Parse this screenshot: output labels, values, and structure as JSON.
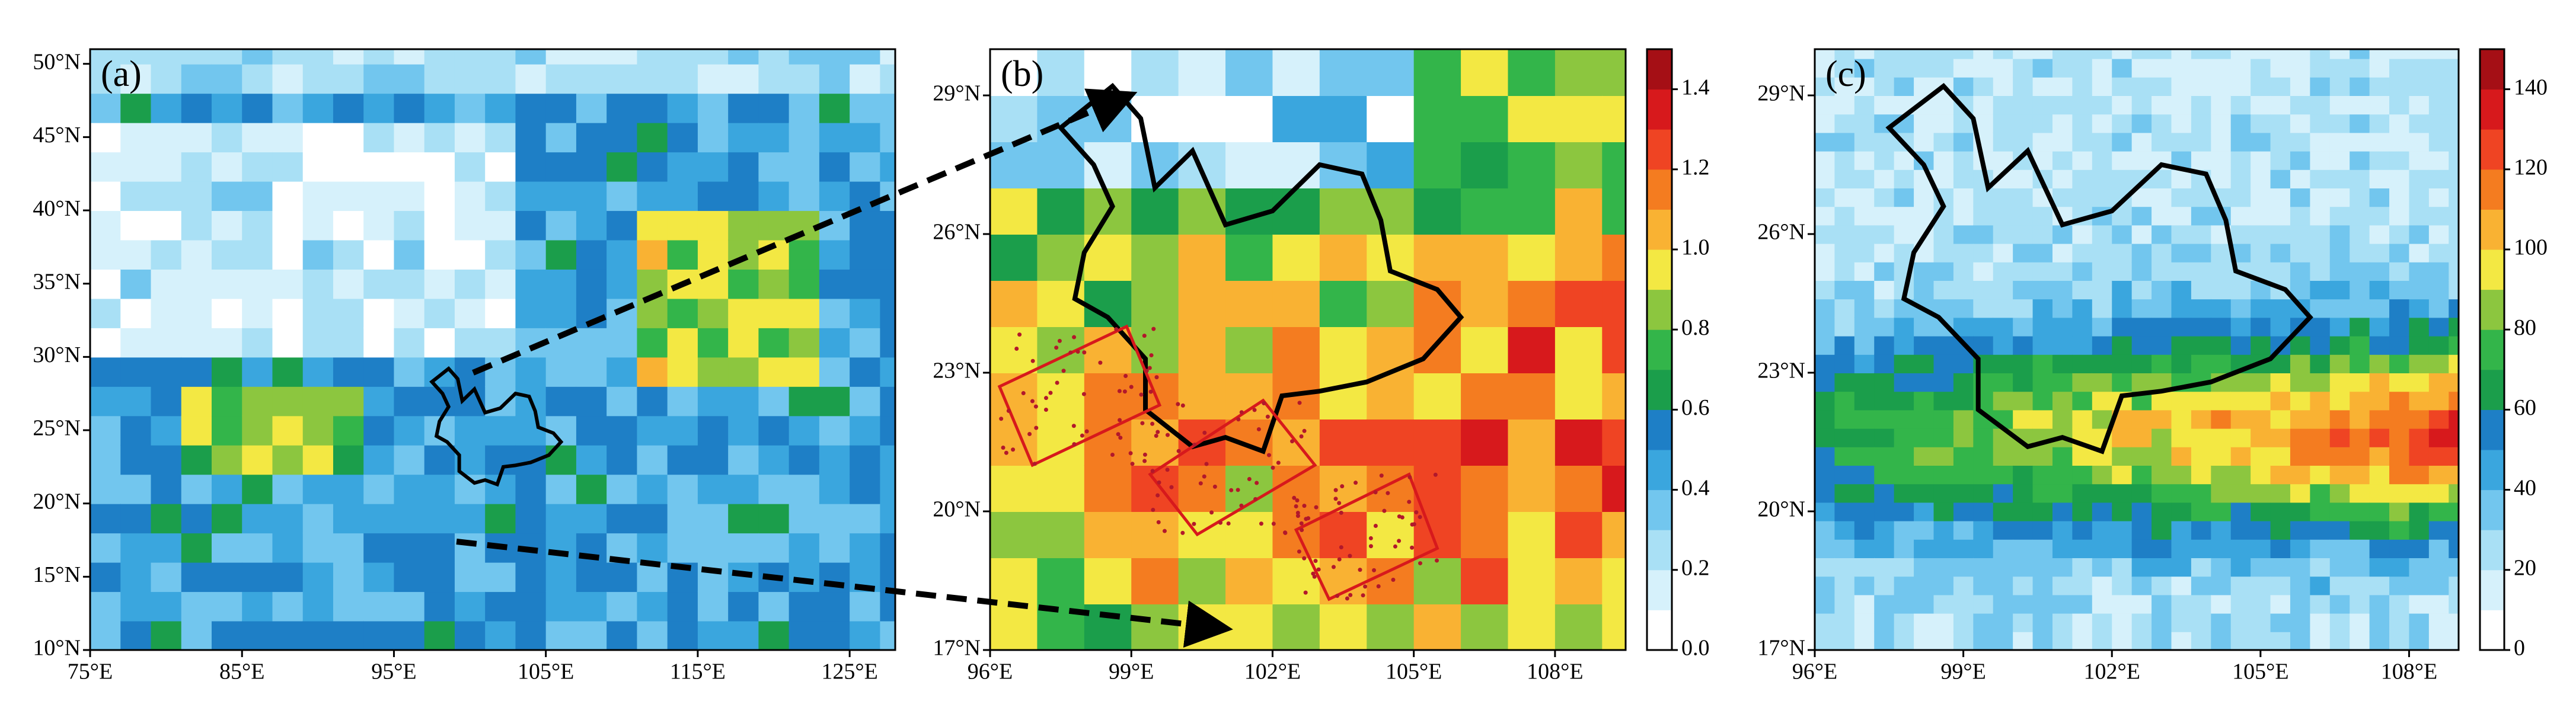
{
  "chart_data": [
    {
      "type": "map",
      "title": "(a)",
      "xlim": [
        75,
        128
      ],
      "ylim": [
        10,
        51
      ],
      "xticks": [
        {
          "value": 75,
          "label": "75°E"
        },
        {
          "value": 85,
          "label": "85°E"
        },
        {
          "value": 95,
          "label": "95°E"
        },
        {
          "value": 105,
          "label": "105°E"
        },
        {
          "value": 115,
          "label": "115°E"
        },
        {
          "value": 125,
          "label": "125°E"
        }
      ],
      "yticks": [
        {
          "value": 10,
          "label": "10°N"
        },
        {
          "value": 15,
          "label": "15°N"
        },
        {
          "value": 20,
          "label": "20°N"
        },
        {
          "value": 25,
          "label": "25°N"
        },
        {
          "value": 30,
          "label": "30°N"
        },
        {
          "value": 35,
          "label": "35°N"
        },
        {
          "value": 40,
          "label": "40°N"
        },
        {
          "value": 45,
          "label": "45°N"
        },
        {
          "value": 50,
          "label": "50°N"
        }
      ]
    },
    {
      "type": "map",
      "title": "(b)",
      "xlim": [
        96,
        109.5
      ],
      "ylim": [
        17,
        30
      ],
      "xticks": [
        {
          "value": 96,
          "label": "96°E"
        },
        {
          "value": 99,
          "label": "99°E"
        },
        {
          "value": 102,
          "label": "102°E"
        },
        {
          "value": 105,
          "label": "105°E"
        },
        {
          "value": 108,
          "label": "108°E"
        }
      ],
      "yticks": [
        {
          "value": 17,
          "label": "17°N"
        },
        {
          "value": 20,
          "label": "20°N"
        },
        {
          "value": 23,
          "label": "23°N"
        },
        {
          "value": 26,
          "label": "26°N"
        },
        {
          "value": 29,
          "label": "29°N"
        }
      ],
      "colorbar_lim": [
        0,
        1.5
      ],
      "colorbar_ticks": [
        {
          "value": 0,
          "label": "0.0"
        },
        {
          "value": 0.2,
          "label": "0.2"
        },
        {
          "value": 0.4,
          "label": "0.4"
        },
        {
          "value": 0.6,
          "label": "0.6"
        },
        {
          "value": 0.8,
          "label": "0.8"
        },
        {
          "value": 1,
          "label": "1.0"
        },
        {
          "value": 1.2,
          "label": "1.2"
        },
        {
          "value": 1.4,
          "label": "1.4"
        }
      ]
    },
    {
      "type": "map",
      "title": "(c)",
      "xlim": [
        96,
        109
      ],
      "ylim": [
        17,
        30
      ],
      "xticks": [
        {
          "value": 96,
          "label": "96°E"
        },
        {
          "value": 99,
          "label": "99°E"
        },
        {
          "value": 102,
          "label": "102°E"
        },
        {
          "value": 105,
          "label": "105°E"
        },
        {
          "value": 108,
          "label": "108°E"
        }
      ],
      "yticks": [
        {
          "value": 17,
          "label": "17°N"
        },
        {
          "value": 20,
          "label": "20°N"
        },
        {
          "value": 23,
          "label": "23°N"
        },
        {
          "value": 26,
          "label": "26°N"
        },
        {
          "value": 29,
          "label": "29°N"
        }
      ],
      "colorbar_lim": [
        0,
        150
      ],
      "colorbar_ticks": [
        0,
        20,
        40,
        60,
        80,
        100,
        120,
        140
      ]
    }
  ]
}
